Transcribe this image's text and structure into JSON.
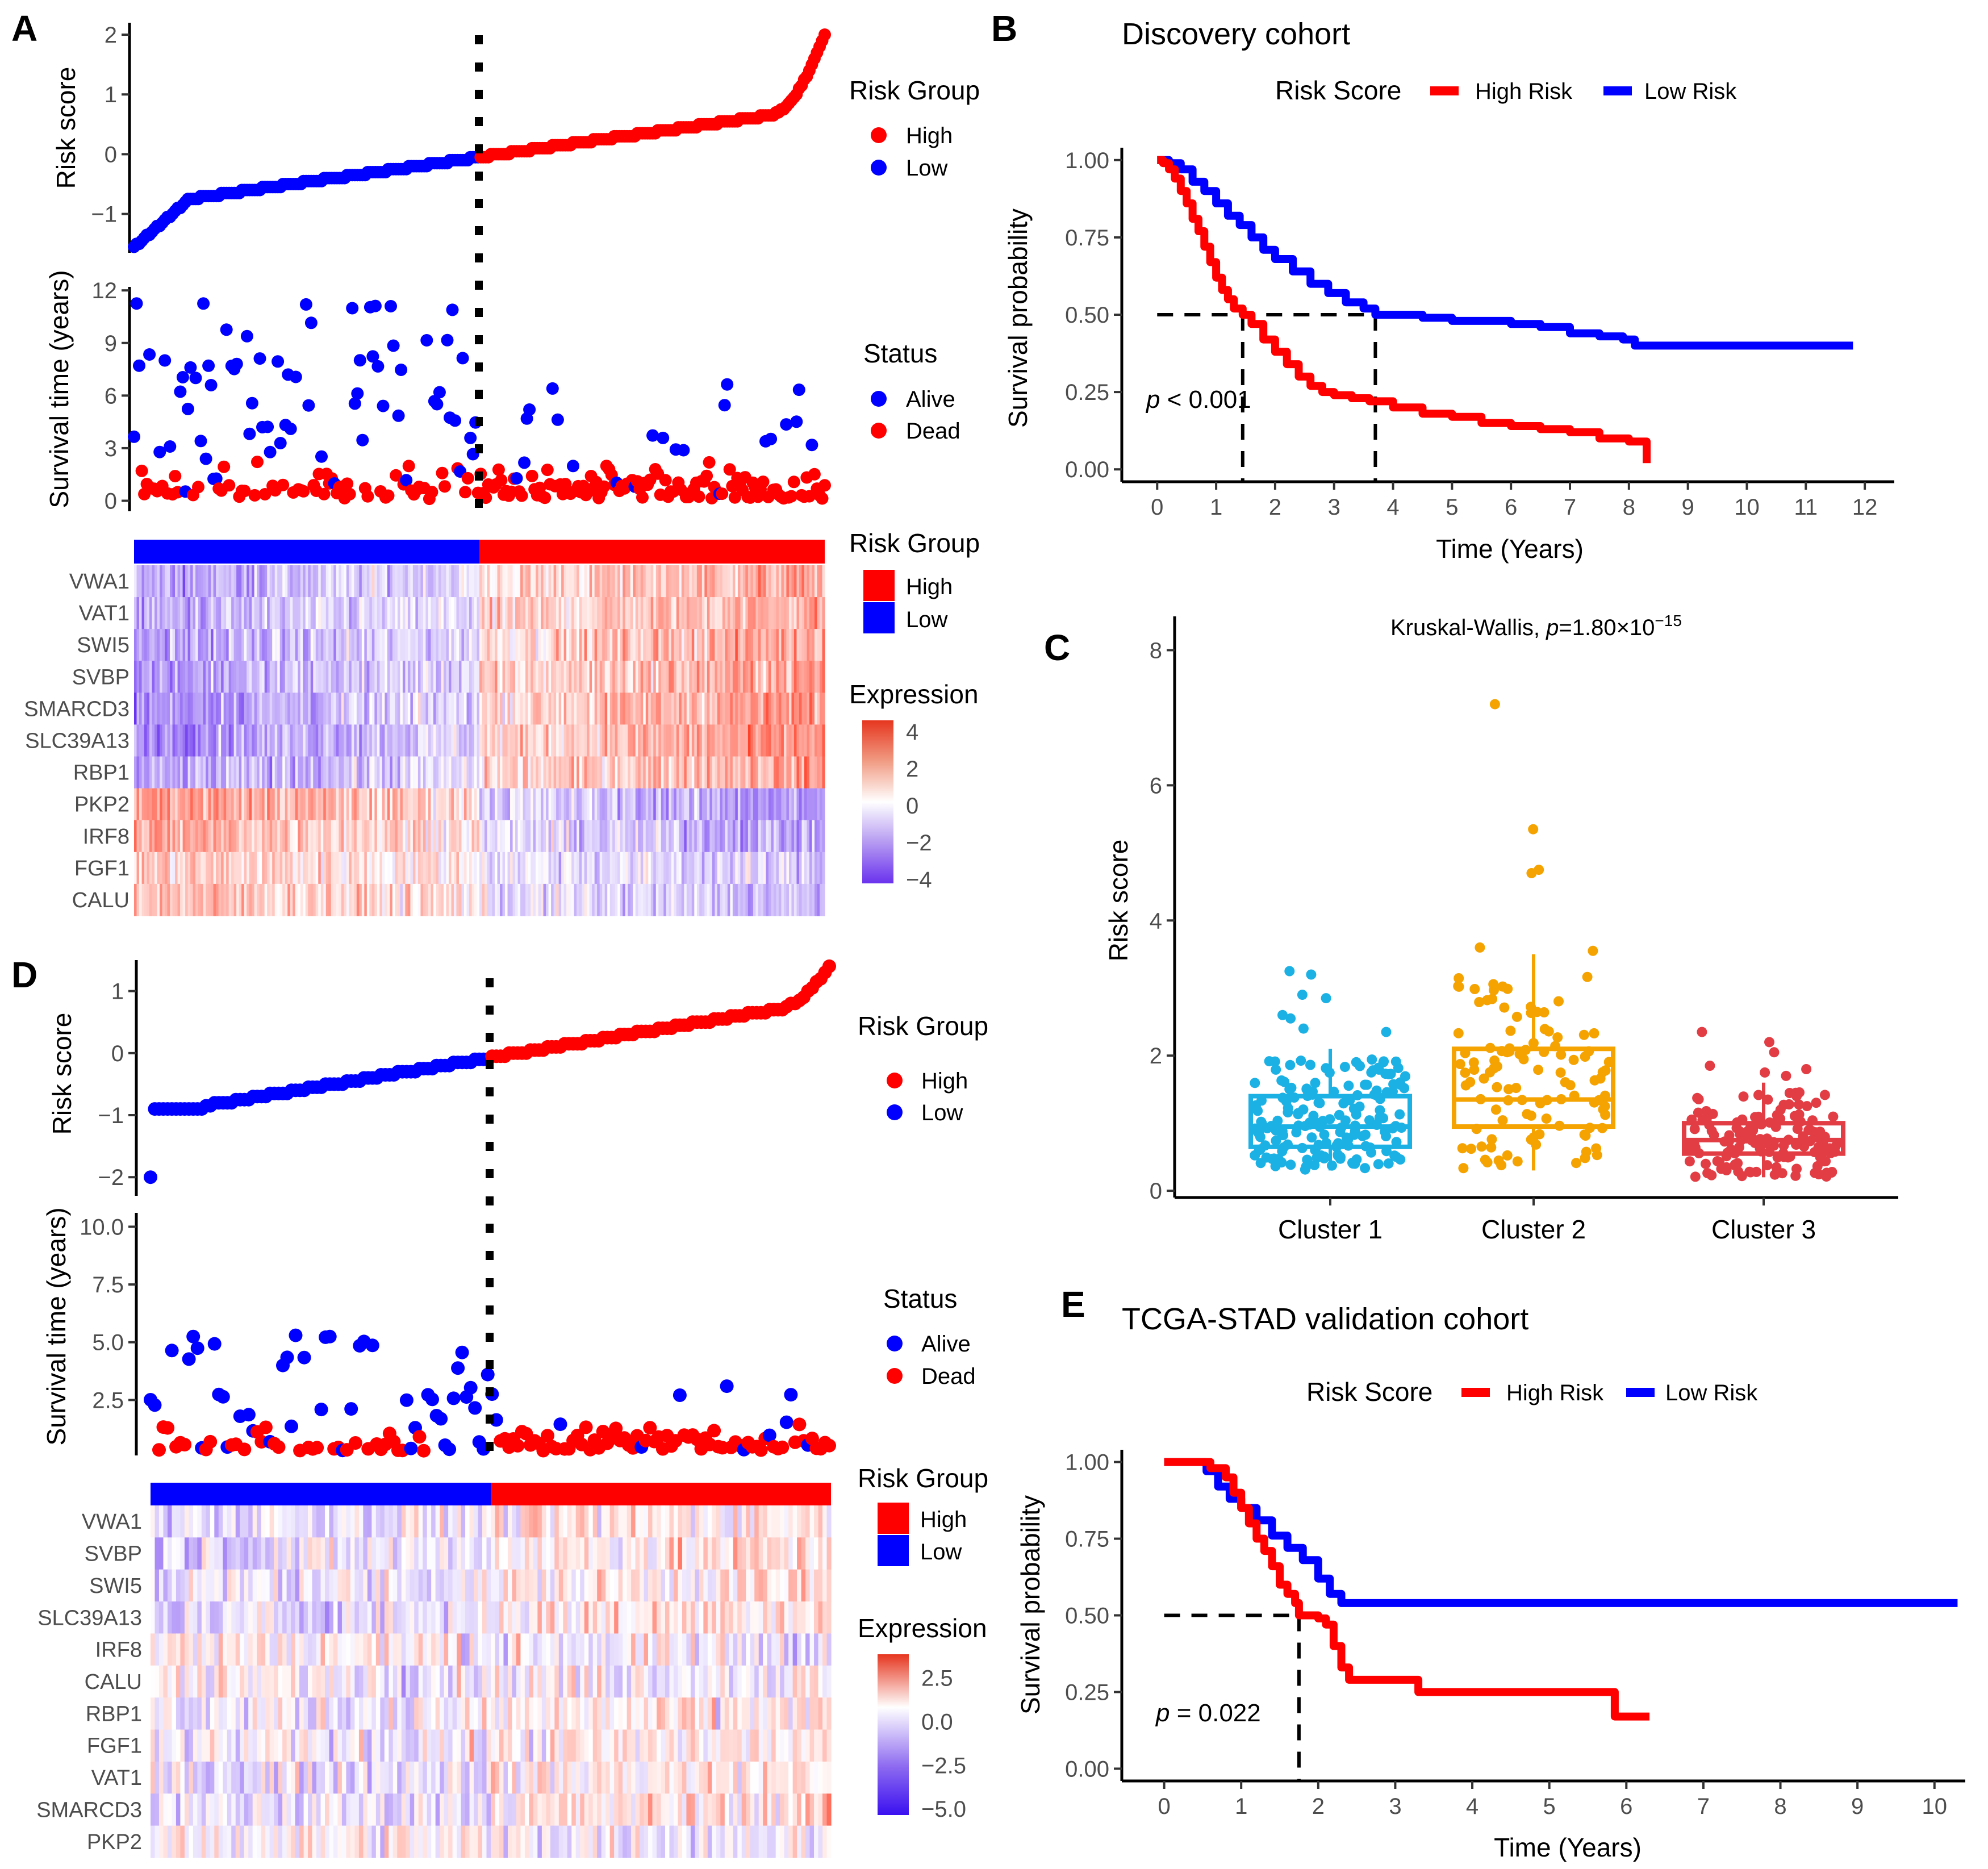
{
  "colors": {
    "high": "#FF0000",
    "low": "#0000FF",
    "cluster1": "#1CB1E4",
    "cluster2": "#F5A300",
    "cluster3": "#E23D45"
  },
  "panelA": {
    "letter": "A",
    "riskscore": {
      "ylabel": "Risk score",
      "yticks": [
        "−1",
        "0",
        "1",
        "2"
      ],
      "ytick_values": [
        -1,
        0,
        1,
        2
      ],
      "ylim": [
        -1.65,
        2.2
      ],
      "n_low": 135,
      "n_high": 135,
      "min": -1.55,
      "max": 2.0
    },
    "survival": {
      "ylabel": "Survival time (years)",
      "yticks": [
        "0",
        "3",
        "6",
        "9",
        "12"
      ],
      "ytick_values": [
        0,
        3,
        6,
        9,
        12
      ],
      "ylim": [
        -0.6,
        12.2
      ]
    },
    "legend_risk": {
      "title": "Risk Group",
      "items": [
        "High",
        "Low"
      ]
    },
    "legend_status": {
      "title": "Status",
      "items": [
        "Alive",
        "Dead"
      ]
    },
    "legend_bar": {
      "title": "Risk Group",
      "items": [
        "High",
        "Low"
      ]
    },
    "legend_expr": {
      "title": "Expression",
      "ticks": [
        "4",
        "2",
        "0",
        "−2",
        "−4"
      ],
      "tick_values": [
        4,
        2,
        0,
        -2,
        -4
      ]
    },
    "genes": [
      "VWA1",
      "VAT1",
      "SWI5",
      "SVBP",
      "SMARCD3",
      "SLC39A13",
      "RBP1",
      "PKP2",
      "IRF8",
      "FGF1",
      "CALU"
    ],
    "gene_bias": [
      0.5,
      0.5,
      0.55,
      0.55,
      0.6,
      0.6,
      0.55,
      -0.6,
      -0.5,
      -0.3,
      -0.4
    ]
  },
  "panelB": {
    "letter": "B",
    "title": "Discovery cohort",
    "legend": {
      "title": "Risk Score",
      "items": [
        "High Risk",
        "Low Risk"
      ]
    },
    "ylabel": "Survival probability",
    "xlabel": "Time (Years)",
    "yticks": [
      "0.00",
      "0.25",
      "0.50",
      "0.75",
      "1.00"
    ],
    "ytick_values": [
      0,
      0.25,
      0.5,
      0.75,
      1
    ],
    "xticks": [
      "0",
      "1",
      "2",
      "3",
      "4",
      "5",
      "6",
      "7",
      "8",
      "9",
      "10",
      "11",
      "12"
    ],
    "xtick_values": [
      0,
      1,
      2,
      3,
      4,
      5,
      6,
      7,
      8,
      9,
      10,
      11,
      12
    ],
    "xlim": [
      -0.6,
      12.5
    ],
    "ylim": [
      -0.04,
      1.04
    ],
    "pvalue_p": "p",
    "pvalue_rest": " < 0.001",
    "median_high": 1.45,
    "median_low": 3.7,
    "high_curve": [
      [
        0,
        1
      ],
      [
        0.1,
        0.99
      ],
      [
        0.2,
        0.97
      ],
      [
        0.3,
        0.94
      ],
      [
        0.4,
        0.9
      ],
      [
        0.5,
        0.86
      ],
      [
        0.6,
        0.81
      ],
      [
        0.7,
        0.77
      ],
      [
        0.8,
        0.72
      ],
      [
        0.9,
        0.67
      ],
      [
        1.0,
        0.62
      ],
      [
        1.1,
        0.58
      ],
      [
        1.2,
        0.55
      ],
      [
        1.3,
        0.52
      ],
      [
        1.45,
        0.5
      ],
      [
        1.6,
        0.47
      ],
      [
        1.8,
        0.42
      ],
      [
        2.0,
        0.38
      ],
      [
        2.2,
        0.34
      ],
      [
        2.4,
        0.3
      ],
      [
        2.6,
        0.27
      ],
      [
        2.8,
        0.25
      ],
      [
        3.0,
        0.24
      ],
      [
        3.3,
        0.23
      ],
      [
        3.6,
        0.22
      ],
      [
        4.0,
        0.2
      ],
      [
        4.5,
        0.18
      ],
      [
        5.0,
        0.17
      ],
      [
        5.5,
        0.15
      ],
      [
        6.0,
        0.14
      ],
      [
        6.5,
        0.13
      ],
      [
        7.0,
        0.12
      ],
      [
        7.5,
        0.1
      ],
      [
        8.0,
        0.09
      ],
      [
        8.3,
        0.09
      ],
      [
        8.3,
        0.02
      ]
    ],
    "low_curve": [
      [
        0,
        1
      ],
      [
        0.2,
        0.99
      ],
      [
        0.4,
        0.97
      ],
      [
        0.6,
        0.93
      ],
      [
        0.8,
        0.9
      ],
      [
        1.0,
        0.86
      ],
      [
        1.2,
        0.82
      ],
      [
        1.4,
        0.79
      ],
      [
        1.6,
        0.75
      ],
      [
        1.8,
        0.71
      ],
      [
        2.0,
        0.68
      ],
      [
        2.3,
        0.64
      ],
      [
        2.6,
        0.6
      ],
      [
        2.9,
        0.57
      ],
      [
        3.2,
        0.54
      ],
      [
        3.5,
        0.52
      ],
      [
        3.7,
        0.5
      ],
      [
        4.0,
        0.5
      ],
      [
        4.5,
        0.49
      ],
      [
        5.0,
        0.48
      ],
      [
        5.5,
        0.48
      ],
      [
        6.0,
        0.47
      ],
      [
        6.5,
        0.46
      ],
      [
        7.0,
        0.44
      ],
      [
        7.5,
        0.43
      ],
      [
        7.9,
        0.42
      ],
      [
        8.1,
        0.4
      ],
      [
        9.0,
        0.4
      ],
      [
        10.0,
        0.4
      ],
      [
        11.0,
        0.4
      ],
      [
        11.8,
        0.4
      ]
    ]
  },
  "panelC": {
    "letter": "C",
    "title_prefix": "Kruskal-Wallis, ",
    "title_p": "p",
    "title_val": "=1.80×10",
    "title_exp": "−15",
    "ylabel": "Risk score",
    "yticks": [
      "0",
      "2",
      "4",
      "6",
      "8"
    ],
    "ytick_values": [
      0,
      2,
      4,
      6,
      8
    ],
    "ylim": [
      -0.1,
      8.5
    ],
    "categories": [
      "Cluster 1",
      "Cluster 2",
      "Cluster 3"
    ],
    "boxes": [
      {
        "q1": 0.65,
        "median": 0.95,
        "q3": 1.4,
        "whisker_low": 0.3,
        "whisker_high": 2.1,
        "n": 170,
        "outliers": [
          3.2,
          3.25,
          2.9,
          2.85,
          2.6,
          2.55,
          2.4,
          2.35
        ]
      },
      {
        "q1": 0.95,
        "median": 1.35,
        "q3": 2.1,
        "whisker_low": 0.3,
        "whisker_high": 3.5,
        "n": 110,
        "outliers": [
          7.2,
          5.35,
          4.75,
          4.7,
          3.6,
          3.55
        ]
      },
      {
        "q1": 0.55,
        "median": 0.75,
        "q3": 1.0,
        "whisker_low": 0.2,
        "whisker_high": 1.6,
        "n": 150,
        "outliers": [
          2.35,
          2.2,
          2.05,
          1.85,
          1.8,
          1.75,
          1.7
        ]
      }
    ]
  },
  "panelD": {
    "letter": "D",
    "riskscore": {
      "ylabel": "Risk score",
      "yticks": [
        "−2",
        "−1",
        "0",
        "1"
      ],
      "ytick_values": [
        -2,
        -1,
        0,
        1
      ],
      "ylim": [
        -2.3,
        1.5
      ],
      "n_low": 80,
      "n_high": 80,
      "min": -2.0,
      "max": 1.4
    },
    "survival": {
      "ylabel": "Survival time (years)",
      "yticks": [
        "2.5",
        "5.0",
        "7.5",
        "10.0"
      ],
      "ytick_values": [
        2.5,
        5.0,
        7.5,
        10.0
      ],
      "ylim": [
        0.1,
        10.6
      ]
    },
    "legend_risk": {
      "title": "Risk Group",
      "items": [
        "High",
        "Low"
      ]
    },
    "legend_status": {
      "title": "Status",
      "items": [
        "Alive",
        "Dead"
      ]
    },
    "legend_bar": {
      "title": "Risk Group",
      "items": [
        "High",
        "Low"
      ]
    },
    "legend_expr": {
      "title": "Expression",
      "ticks": [
        "2.5",
        "0.0",
        "−2.5",
        "−5.0"
      ],
      "tick_values": [
        2.5,
        0.0,
        -2.5,
        -5.0
      ]
    },
    "genes": [
      "VWA1",
      "SVBP",
      "SWI5",
      "SLC39A13",
      "IRF8",
      "CALU",
      "RBP1",
      "FGF1",
      "VAT1",
      "SMARCD3",
      "PKP2"
    ],
    "gene_bias": [
      0.15,
      0.2,
      0.15,
      0.25,
      -0.1,
      0.0,
      0.1,
      0.1,
      0.15,
      0.2,
      -0.05
    ]
  },
  "panelE": {
    "letter": "E",
    "title": "TCGA-STAD validation cohort",
    "legend": {
      "title": "Risk Score",
      "items": [
        "High Risk",
        "Low Risk"
      ]
    },
    "ylabel": "Survival probability",
    "xlabel": "Time (Years)",
    "yticks": [
      "0.00",
      "0.25",
      "0.50",
      "0.75",
      "1.00"
    ],
    "ytick_values": [
      0,
      0.25,
      0.5,
      0.75,
      1
    ],
    "xticks": [
      "0",
      "1",
      "2",
      "3",
      "4",
      "5",
      "6",
      "7",
      "8",
      "9",
      "10"
    ],
    "xtick_values": [
      0,
      1,
      2,
      3,
      4,
      5,
      6,
      7,
      8,
      9,
      10
    ],
    "xlim": [
      -0.55,
      10.4
    ],
    "ylim": [
      -0.04,
      1.04
    ],
    "pvalue_p": "p",
    "pvalue_rest": " = 0.022",
    "median_high": 1.75,
    "high_curve": [
      [
        0,
        1
      ],
      [
        0.5,
        1
      ],
      [
        0.6,
        0.98
      ],
      [
        0.8,
        0.95
      ],
      [
        0.9,
        0.9
      ],
      [
        1.0,
        0.85
      ],
      [
        1.1,
        0.8
      ],
      [
        1.2,
        0.75
      ],
      [
        1.3,
        0.71
      ],
      [
        1.4,
        0.66
      ],
      [
        1.5,
        0.6
      ],
      [
        1.6,
        0.57
      ],
      [
        1.7,
        0.54
      ],
      [
        1.75,
        0.5
      ],
      [
        2.0,
        0.49
      ],
      [
        2.1,
        0.47
      ],
      [
        2.2,
        0.4
      ],
      [
        2.3,
        0.33
      ],
      [
        2.4,
        0.29
      ],
      [
        3.2,
        0.29
      ],
      [
        3.3,
        0.25
      ],
      [
        5.8,
        0.25
      ],
      [
        5.85,
        0.17
      ],
      [
        6.3,
        0.17
      ]
    ],
    "low_curve": [
      [
        0,
        1
      ],
      [
        0.5,
        1
      ],
      [
        0.55,
        0.97
      ],
      [
        0.7,
        0.92
      ],
      [
        0.85,
        0.88
      ],
      [
        1.0,
        0.85
      ],
      [
        1.2,
        0.81
      ],
      [
        1.4,
        0.76
      ],
      [
        1.6,
        0.72
      ],
      [
        1.8,
        0.68
      ],
      [
        2.0,
        0.62
      ],
      [
        2.15,
        0.57
      ],
      [
        2.3,
        0.54
      ],
      [
        3.0,
        0.54
      ],
      [
        4.0,
        0.54
      ],
      [
        5.0,
        0.54
      ],
      [
        6.0,
        0.54
      ],
      [
        7.0,
        0.54
      ],
      [
        8.0,
        0.54
      ],
      [
        9.0,
        0.54
      ],
      [
        10.3,
        0.54
      ]
    ]
  }
}
